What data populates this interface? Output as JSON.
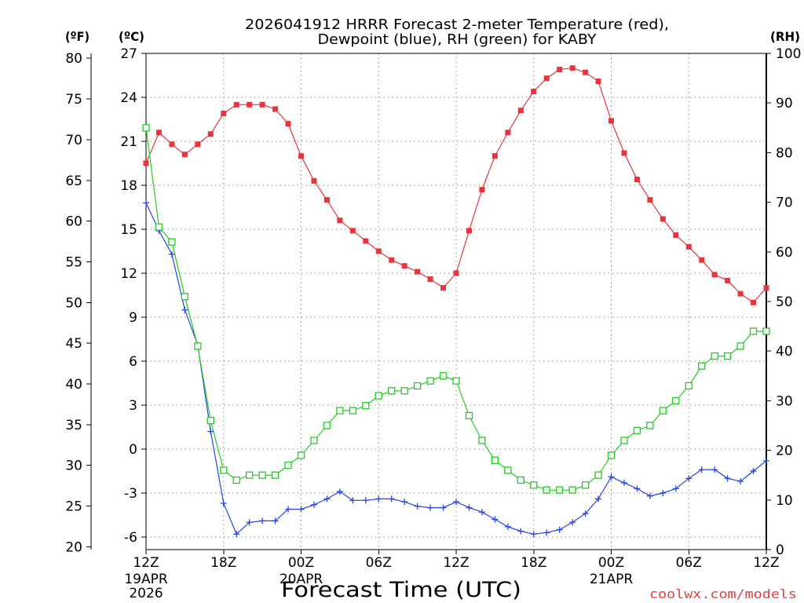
{
  "chart_data": {
    "type": "line",
    "title_lines": [
      "2026041912 HRRR Forecast 2-meter Temperature (red),",
      "Dewpoint (blue), RH (green) for KABY"
    ],
    "xlabel": "Forecast Time (UTC)",
    "credit": "coolwx.com/models",
    "credit_color": "#e0403c",
    "axis_units": {
      "fahrenheit": "(ºF)",
      "celsius": "(ºC)",
      "rh": "(RH)"
    },
    "grid": true,
    "x_hours": [
      0,
      1,
      2,
      3,
      4,
      5,
      6,
      7,
      8,
      9,
      10,
      11,
      12,
      13,
      14,
      15,
      16,
      17,
      18,
      19,
      20,
      21,
      22,
      23,
      24,
      25,
      26,
      27,
      28,
      29,
      30,
      31,
      32,
      33,
      34,
      35,
      36,
      37,
      38,
      39,
      40,
      41,
      42,
      43,
      44,
      45,
      46,
      47,
      48
    ],
    "x_range_hours": [
      0,
      48
    ],
    "x_ticks": [
      {
        "hour": 0,
        "label": "12Z",
        "date": "19APR",
        "year": "2026"
      },
      {
        "hour": 6,
        "label": "18Z"
      },
      {
        "hour": 12,
        "label": "00Z",
        "date": "20APR"
      },
      {
        "hour": 18,
        "label": "06Z"
      },
      {
        "hour": 24,
        "label": "12Z"
      },
      {
        "hour": 30,
        "label": "18Z"
      },
      {
        "hour": 36,
        "label": "00Z",
        "date": "21APR"
      },
      {
        "hour": 42,
        "label": "06Z"
      },
      {
        "hour": 48,
        "label": "12Z"
      }
    ],
    "temp_c_range": [
      -6.86,
      27
    ],
    "temp_c_ticks": [
      27,
      24,
      21,
      18,
      15,
      12,
      9,
      6,
      3,
      0,
      -3,
      -6
    ],
    "temp_f_ticks": [
      80,
      75,
      70,
      65,
      60,
      55,
      50,
      45,
      40,
      35,
      30,
      25,
      20
    ],
    "rh_range": [
      0,
      100
    ],
    "rh_ticks": [
      100,
      90,
      80,
      70,
      60,
      50,
      40,
      30,
      20,
      10,
      0
    ],
    "series": [
      {
        "name": "Temperature",
        "color": "#e8343a",
        "right_axis": false,
        "values": [
          19.5,
          21.6,
          20.8,
          20.1,
          20.8,
          21.5,
          22.9,
          23.5,
          23.5,
          23.5,
          23.2,
          22.2,
          20.0,
          18.3,
          17.0,
          15.6,
          14.9,
          14.2,
          13.5,
          12.9,
          12.5,
          12.1,
          11.6,
          11.0,
          12.0,
          14.9,
          17.7,
          20.0,
          21.6,
          23.1,
          24.4,
          25.3,
          25.9,
          26.0,
          25.7,
          25.1,
          22.4,
          20.2,
          18.4,
          17.0,
          15.7,
          14.6,
          13.8,
          12.9,
          11.9,
          11.5,
          10.6,
          10.0,
          11.0
        ]
      },
      {
        "name": "Dewpoint",
        "color": "#2744e8",
        "right_axis": false,
        "values": [
          16.8,
          14.9,
          13.3,
          9.5,
          7.1,
          1.2,
          -3.7,
          -5.8,
          -5.0,
          -4.9,
          -4.9,
          -4.1,
          -4.1,
          -3.8,
          -3.4,
          -2.9,
          -3.5,
          -3.5,
          -3.4,
          -3.4,
          -3.6,
          -3.9,
          -4.0,
          -4.0,
          -3.6,
          -4.0,
          -4.3,
          -4.8,
          -5.3,
          -5.6,
          -5.8,
          -5.7,
          -5.5,
          -5.0,
          -4.4,
          -3.4,
          -1.9,
          -2.3,
          -2.7,
          -3.2,
          -3.0,
          -2.7,
          -2.0,
          -1.4,
          -1.4,
          -2.0,
          -2.2,
          -1.5,
          -0.8
        ]
      },
      {
        "name": "RH",
        "color": "#22cc22",
        "right_axis": true,
        "values": [
          85,
          65,
          62,
          51,
          41,
          26,
          16,
          14,
          15,
          15,
          15,
          17,
          19,
          22,
          25,
          28,
          28,
          29,
          31,
          32,
          32,
          33,
          34,
          35,
          34,
          27,
          22,
          18,
          16,
          14,
          13,
          12,
          12,
          12,
          13,
          15,
          19,
          22,
          24,
          25,
          28,
          30,
          33,
          37,
          39,
          39,
          41,
          44,
          44
        ]
      }
    ]
  }
}
